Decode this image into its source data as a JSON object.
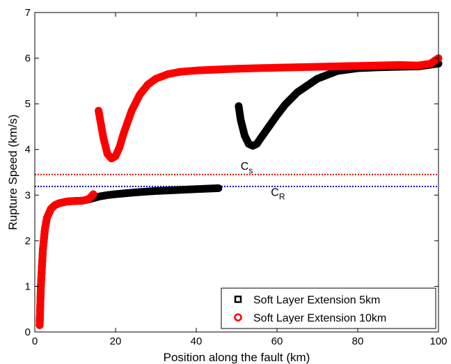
{
  "chart_data": {
    "type": "scatter",
    "xlabel": "Position along the fault (km)",
    "ylabel": "Rupture Speed (km/s)",
    "xlim": [
      0,
      100
    ],
    "ylim": [
      0,
      7
    ],
    "xticks": [
      0,
      20,
      40,
      60,
      80,
      100
    ],
    "yticks": [
      0,
      1,
      2,
      3,
      4,
      5,
      6,
      7
    ],
    "grid": false,
    "legend_position": "bottom-right",
    "reference_lines": [
      {
        "label": "C",
        "subscript": "s",
        "y": 3.45,
        "color": "#e00000",
        "style": "dotted",
        "label_x": 51,
        "label_y": 3.55
      },
      {
        "label": "C",
        "subscript": "R",
        "y": 3.19,
        "color": "#0000e0",
        "style": "dotted",
        "label_x": 58.5,
        "label_y": 2.98
      }
    ],
    "series": [
      {
        "name": "Soft Layer Extension 5km",
        "color": "#000000",
        "marker": "square",
        "segments": [
          {
            "x": [
              1.2,
              1.5,
              2,
              2.5,
              3,
              4,
              5,
              6,
              7,
              8,
              10,
              12,
              14,
              16,
              18,
              20,
              25,
              30,
              35,
              40,
              45.5
            ],
            "y": [
              0.15,
              1.0,
              1.8,
              2.25,
              2.5,
              2.7,
              2.78,
              2.82,
              2.84,
              2.86,
              2.87,
              2.88,
              2.92,
              2.97,
              3.0,
              3.02,
              3.06,
              3.09,
              3.11,
              3.13,
              3.15
            ]
          },
          {
            "x": [
              50.5,
              51,
              52,
              53,
              54,
              55,
              56,
              58,
              60,
              62,
              65,
              70,
              75,
              80,
              85,
              90,
              95,
              100
            ],
            "y": [
              4.95,
              4.65,
              4.3,
              4.12,
              4.08,
              4.12,
              4.25,
              4.5,
              4.75,
              4.98,
              5.25,
              5.55,
              5.72,
              5.78,
              5.8,
              5.81,
              5.82,
              5.88
            ]
          }
        ]
      },
      {
        "name": "Soft Layer Extension 10km",
        "color": "#ff0000",
        "marker": "circle",
        "segments": [
          {
            "x": [
              1.2,
              1.5,
              2,
              2.5,
              3,
              4,
              5,
              6,
              7,
              8,
              10,
              12,
              13.5,
              14.5
            ],
            "y": [
              0.15,
              1.0,
              1.8,
              2.25,
              2.5,
              2.7,
              2.78,
              2.82,
              2.84,
              2.86,
              2.87,
              2.88,
              2.92,
              3.02
            ]
          },
          {
            "x": [
              15.8,
              16.3,
              17,
              18,
              19,
              20,
              21,
              22,
              24,
              26,
              28,
              30,
              33,
              36,
              40,
              45,
              50,
              60,
              70,
              80,
              85,
              90,
              95,
              98,
              100
            ],
            "y": [
              4.85,
              4.6,
              4.25,
              3.9,
              3.8,
              3.85,
              4.05,
              4.35,
              4.85,
              5.2,
              5.42,
              5.55,
              5.65,
              5.7,
              5.73,
              5.75,
              5.77,
              5.79,
              5.81,
              5.83,
              5.84,
              5.85,
              5.84,
              5.88,
              6.0
            ]
          }
        ]
      }
    ]
  }
}
